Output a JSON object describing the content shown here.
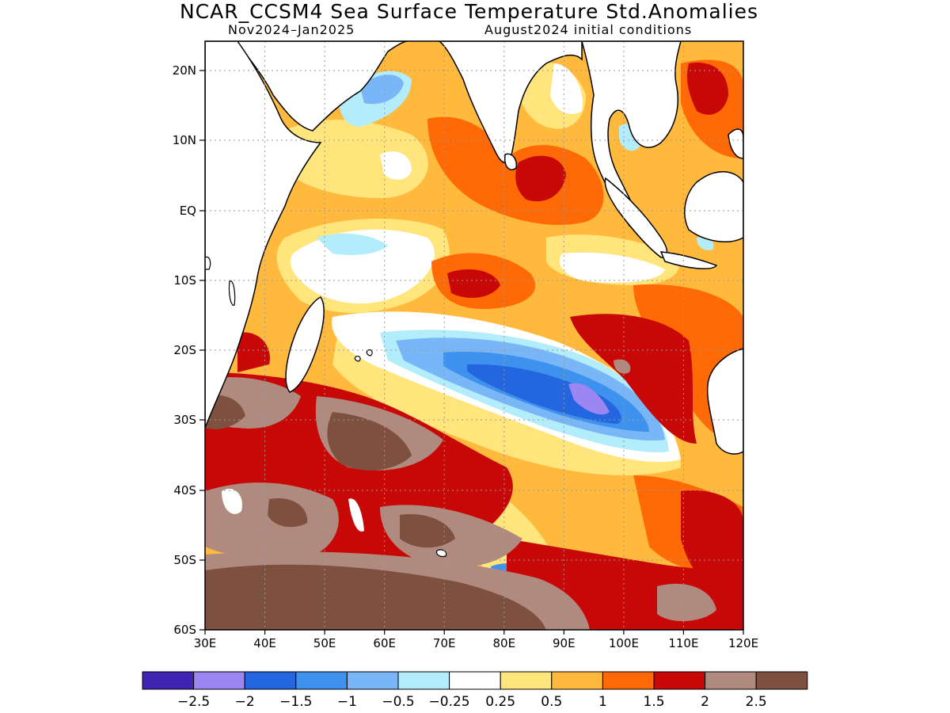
{
  "title": "NCAR_CCSM4 Sea Surface Temperature Std.Anomalies",
  "subtitle_left": "Nov2024–Jan2025",
  "subtitle_right": "August2024 initial conditions",
  "lat_ticks": [
    "20N",
    "10N",
    "EQ",
    "10S",
    "20S",
    "30S",
    "40S",
    "50S",
    "60S"
  ],
  "lon_ticks": [
    "30E",
    "40E",
    "50E",
    "60E",
    "70E",
    "80E",
    "90E",
    "100E",
    "110E",
    "120E"
  ],
  "colorbar": {
    "colors": [
      "#3f24b4",
      "#9b86f2",
      "#2366e0",
      "#3e91ec",
      "#78b6f7",
      "#b3ecfa",
      "#ffffff",
      "#ffe57c",
      "#ffba3e",
      "#ff6a06",
      "#c80707",
      "#b08a7e",
      "#7d5040"
    ],
    "labels": [
      "−2.5",
      "−2",
      "−1.5",
      "−1",
      "−0.5",
      "−0.25",
      "0.25",
      "0.5",
      "1",
      "1.5",
      "2",
      "2.5"
    ]
  },
  "palette": {
    "land": "#ffffff",
    "coast": "#000000",
    "grid": "#9a9a9a"
  }
}
